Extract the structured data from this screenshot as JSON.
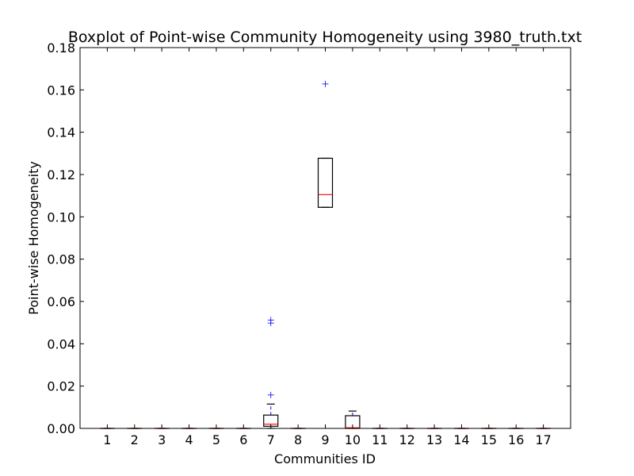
{
  "chart_data": {
    "type": "boxplot",
    "title": "Boxplot of Point-wise Community Homogeneity using 3980_truth.txt",
    "xlabel": "Communities ID",
    "ylabel": "Point-wise Homogeneity",
    "ylim": [
      0.0,
      0.18
    ],
    "yticks": [
      "0.00",
      "0.02",
      "0.04",
      "0.06",
      "0.08",
      "0.10",
      "0.12",
      "0.14",
      "0.16",
      "0.18"
    ],
    "grid": false,
    "colors": {
      "box": "#000000",
      "median": "#ff0000",
      "whisker": "#0000ff",
      "flier": "#0000ff"
    },
    "categories": [
      "1",
      "2",
      "3",
      "4",
      "5",
      "6",
      "7",
      "8",
      "9",
      "10",
      "11",
      "12",
      "13",
      "14",
      "15",
      "16",
      "17"
    ],
    "boxes": [
      {
        "id": "1",
        "q1": 0,
        "median": 0,
        "q3": 0,
        "whisker_low": 0,
        "whisker_high": 0,
        "fliers": []
      },
      {
        "id": "2",
        "q1": 0,
        "median": 0,
        "q3": 0,
        "whisker_low": 0,
        "whisker_high": 0,
        "fliers": []
      },
      {
        "id": "3",
        "q1": 0,
        "median": 0,
        "q3": 0,
        "whisker_low": 0,
        "whisker_high": 0,
        "fliers": []
      },
      {
        "id": "4",
        "q1": 0,
        "median": 0,
        "q3": 0,
        "whisker_low": 0,
        "whisker_high": 0,
        "fliers": []
      },
      {
        "id": "5",
        "q1": 0,
        "median": 0,
        "q3": 0,
        "whisker_low": 0,
        "whisker_high": 0,
        "fliers": []
      },
      {
        "id": "6",
        "q1": 0,
        "median": 0,
        "q3": 0,
        "whisker_low": 0,
        "whisker_high": 0,
        "fliers": []
      },
      {
        "id": "7",
        "q1": 0.001,
        "median": 0.002,
        "q3": 0.0063,
        "whisker_low": 0,
        "whisker_high": 0.0115,
        "fliers": [
          0.0158,
          0.0498,
          0.0512
        ]
      },
      {
        "id": "8",
        "q1": 0,
        "median": 0,
        "q3": 0,
        "whisker_low": 0,
        "whisker_high": 0,
        "fliers": []
      },
      {
        "id": "9",
        "q1": 0.1045,
        "median": 0.1105,
        "q3": 0.1277,
        "whisker_low": 0.1045,
        "whisker_high": 0.1277,
        "fliers": [
          0.1628
        ]
      },
      {
        "id": "10",
        "q1": 0,
        "median": 0.0003,
        "q3": 0.006,
        "whisker_low": 0,
        "whisker_high": 0.0082,
        "fliers": []
      },
      {
        "id": "11",
        "q1": 0,
        "median": 0,
        "q3": 0,
        "whisker_low": 0,
        "whisker_high": 0,
        "fliers": []
      },
      {
        "id": "12",
        "q1": 0,
        "median": 0,
        "q3": 0,
        "whisker_low": 0,
        "whisker_high": 0,
        "fliers": []
      },
      {
        "id": "13",
        "q1": 0,
        "median": 0,
        "q3": 0,
        "whisker_low": 0,
        "whisker_high": 0,
        "fliers": []
      },
      {
        "id": "14",
        "q1": 0,
        "median": 0,
        "q3": 0,
        "whisker_low": 0,
        "whisker_high": 0,
        "fliers": []
      },
      {
        "id": "15",
        "q1": 0,
        "median": 0,
        "q3": 0,
        "whisker_low": 0,
        "whisker_high": 0,
        "fliers": []
      },
      {
        "id": "16",
        "q1": 0,
        "median": 0,
        "q3": 0,
        "whisker_low": 0,
        "whisker_high": 0,
        "fliers": []
      },
      {
        "id": "17",
        "q1": 0,
        "median": 0,
        "q3": 0,
        "whisker_low": 0,
        "whisker_high": 0,
        "fliers": []
      }
    ]
  }
}
